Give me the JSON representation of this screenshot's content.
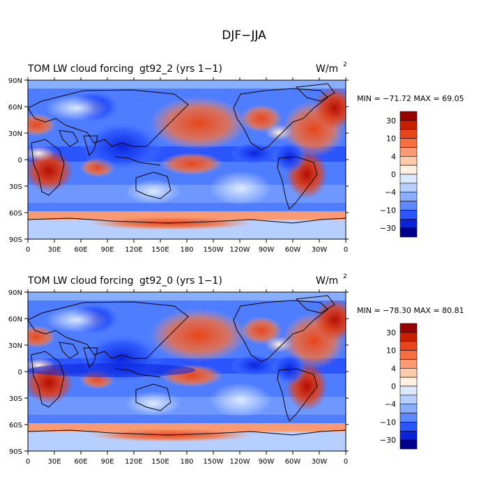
{
  "figure": {
    "title": "DJF−JJA"
  },
  "chart_data": [
    {
      "type": "heatmap",
      "title": "TOM LW cloud forcing",
      "case": "gt92_2 (yrs 1−1)",
      "units": "W/m",
      "units_sup": "2",
      "stats": "MIN = −71.72 MAX =  69.05",
      "min": -71.72,
      "max": 69.05,
      "xlabels": [
        "0",
        "30E",
        "60E",
        "90E",
        "120E",
        "150E",
        "180",
        "150W",
        "120W",
        "90W",
        "60W",
        "30W",
        "0"
      ],
      "ylabels": [
        "90N",
        "60N",
        "30N",
        "0",
        "30S",
        "60S",
        "90S"
      ],
      "xlim": [
        0,
        360
      ],
      "ylim": [
        -90,
        90
      ],
      "colorbar_labels": [
        "30",
        "10",
        "4",
        "0",
        "−4",
        "−10",
        "−30"
      ],
      "colorbar_label_levels": [
        30,
        10,
        4,
        0,
        -4,
        -10,
        -30
      ]
    },
    {
      "type": "heatmap",
      "title": "TOM LW cloud forcing",
      "case": "gt92_0 (yrs 1−1)",
      "units": "W/m",
      "units_sup": "2",
      "stats": "MIN = −78.30 MAX =  80.81",
      "min": -78.3,
      "max": 80.81,
      "xlabels": [
        "0",
        "30E",
        "60E",
        "90E",
        "120E",
        "150E",
        "180",
        "150W",
        "120W",
        "90W",
        "60W",
        "30W",
        "0"
      ],
      "ylabels": [
        "90N",
        "60N",
        "30N",
        "0",
        "30S",
        "60S",
        "90S"
      ],
      "xlim": [
        0,
        360
      ],
      "ylim": [
        -90,
        90
      ],
      "colorbar_labels": [
        "30",
        "10",
        "4",
        "0",
        "−4",
        "−10",
        "−30"
      ],
      "colorbar_label_levels": [
        30,
        10,
        4,
        0,
        -4,
        -10,
        -30
      ]
    }
  ],
  "colors": {
    "levels": [
      "#9a0000",
      "#c81f00",
      "#e8451a",
      "#f5703e",
      "#f99a72",
      "#fcc9aa",
      "#fff0e2",
      "#dbe9ff",
      "#b6cfff",
      "#8aaeff",
      "#5d88ff",
      "#2a55ff",
      "#0a23d9",
      "#00008b"
    ]
  }
}
